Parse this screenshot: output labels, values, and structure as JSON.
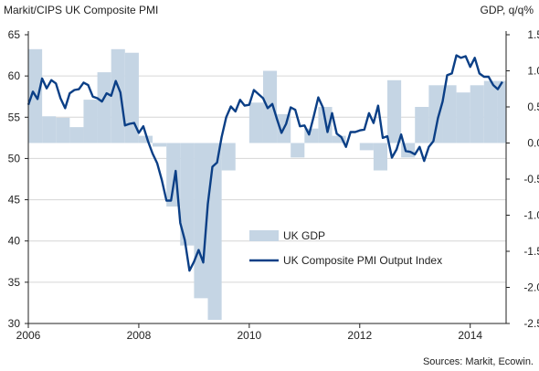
{
  "chart_data": {
    "type": "bar+line",
    "left_axis_title": "Markit/CIPS UK Composite PMI",
    "right_axis_title": "GDP, q/q%",
    "source": "Sources: Markit, Ecowin.",
    "x_range": [
      2006.0,
      2014.65
    ],
    "x_ticks": [
      "2006",
      "2008",
      "2010",
      "2012",
      "2014"
    ],
    "left_ylim": [
      30,
      65
    ],
    "left_ticks": [
      "30",
      "35",
      "40",
      "45",
      "50",
      "55",
      "60",
      "65"
    ],
    "right_ylim": [
      -2.5,
      1.5
    ],
    "right_ticks": [
      "-2.5",
      "-2.0",
      "-1.5",
      "-1.0",
      "-0.5",
      "0.0",
      "0.5",
      "1.0",
      "1.5"
    ],
    "grid": "horizontal",
    "legend": [
      "UK GDP",
      "UK Composite PMI Output Index"
    ],
    "colors": {
      "gdp_bar": "#c5d5e4",
      "pmi_line": "#0b3f86",
      "grid": "#d6d6d6"
    },
    "series": [
      {
        "name": "UK GDP",
        "axis": "right",
        "kind": "bar",
        "quarters": [
          "2006Q1",
          "2006Q2",
          "2006Q3",
          "2006Q4",
          "2007Q1",
          "2007Q2",
          "2007Q3",
          "2007Q4",
          "2008Q1",
          "2008Q2",
          "2008Q3",
          "2008Q4",
          "2009Q1",
          "2009Q2",
          "2009Q3",
          "2009Q4",
          "2010Q1",
          "2010Q2",
          "2010Q3",
          "2010Q4",
          "2011Q1",
          "2011Q2",
          "2011Q3",
          "2011Q4",
          "2012Q1",
          "2012Q2",
          "2012Q3",
          "2012Q4",
          "2013Q1",
          "2013Q2",
          "2013Q3",
          "2013Q4",
          "2014Q1",
          "2014Q2",
          "2014Q3"
        ],
        "values": [
          1.3,
          0.37,
          0.35,
          0.22,
          0.6,
          0.98,
          1.3,
          1.25,
          0.1,
          -0.05,
          -0.88,
          -1.42,
          -2.15,
          -2.45,
          -0.38,
          0.0,
          0.56,
          1.0,
          0.4,
          -0.2,
          0.2,
          0.5,
          0.1,
          0.0,
          -0.1,
          -0.38,
          0.87,
          -0.2,
          0.5,
          0.8,
          0.8,
          0.7,
          0.8,
          0.86,
          0.86
        ]
      },
      {
        "name": "UK Composite PMI Output Index",
        "axis": "left",
        "kind": "line",
        "x": [
          2006.0,
          2006.083,
          2006.167,
          2006.25,
          2006.333,
          2006.417,
          2006.5,
          2006.583,
          2006.667,
          2006.75,
          2006.833,
          2006.917,
          2007.0,
          2007.083,
          2007.167,
          2007.25,
          2007.333,
          2007.417,
          2007.5,
          2007.583,
          2007.667,
          2007.75,
          2007.833,
          2007.917,
          2008.0,
          2008.083,
          2008.167,
          2008.25,
          2008.333,
          2008.417,
          2008.5,
          2008.583,
          2008.667,
          2008.75,
          2008.833,
          2008.917,
          2009.0,
          2009.083,
          2009.167,
          2009.25,
          2009.333,
          2009.417,
          2009.5,
          2009.583,
          2009.667,
          2009.75,
          2009.833,
          2009.917,
          2010.0,
          2010.083,
          2010.167,
          2010.25,
          2010.333,
          2010.417,
          2010.5,
          2010.583,
          2010.667,
          2010.75,
          2010.833,
          2010.917,
          2011.0,
          2011.083,
          2011.167,
          2011.25,
          2011.333,
          2011.417,
          2011.5,
          2011.583,
          2011.667,
          2011.75,
          2011.833,
          2011.917,
          2012.0,
          2012.083,
          2012.167,
          2012.25,
          2012.333,
          2012.417,
          2012.5,
          2012.583,
          2012.667,
          2012.75,
          2012.833,
          2012.917,
          2013.0,
          2013.083,
          2013.167,
          2013.25,
          2013.333,
          2013.417,
          2013.5,
          2013.583,
          2013.667,
          2013.75,
          2013.833,
          2013.917,
          2014.0,
          2014.083,
          2014.167,
          2014.25,
          2014.333,
          2014.417,
          2014.5,
          2014.583
        ],
        "values": [
          56.5,
          58.1,
          57.2,
          59.7,
          58.5,
          59.5,
          59.1,
          57.3,
          56.1,
          57.9,
          58.3,
          58.4,
          59.2,
          58.9,
          57.5,
          57.3,
          56.9,
          57.9,
          57.6,
          59.4,
          58.0,
          54.0,
          54.2,
          54.3,
          53.1,
          53.9,
          52.1,
          50.6,
          49.4,
          47.4,
          44.9,
          44.9,
          48.5,
          42.2,
          40.1,
          36.4,
          37.5,
          38.9,
          37.4,
          44.5,
          49.0,
          49.5,
          52.6,
          55.0,
          56.3,
          55.7,
          57.1,
          56.4,
          56.5,
          58.3,
          57.8,
          57.3,
          56.1,
          56.6,
          54.8,
          53.1,
          54.2,
          56.2,
          55.9,
          53.9,
          54.0,
          52.9,
          55.1,
          57.4,
          56.2,
          53.2,
          55.5,
          53.0,
          52.6,
          51.4,
          53.2,
          53.2,
          53.4,
          53.5,
          55.5,
          54.3,
          56.4,
          52.5,
          52.7,
          50.1,
          51.1,
          52.9,
          50.9,
          50.8,
          50.5,
          51.4,
          49.7,
          51.4,
          52.1,
          54.9,
          56.9,
          60.1,
          60.3,
          62.5,
          62.2,
          62.4,
          61.1,
          62.2,
          60.3,
          59.9,
          59.9,
          58.9,
          58.4,
          59.3
        ]
      }
    ]
  }
}
